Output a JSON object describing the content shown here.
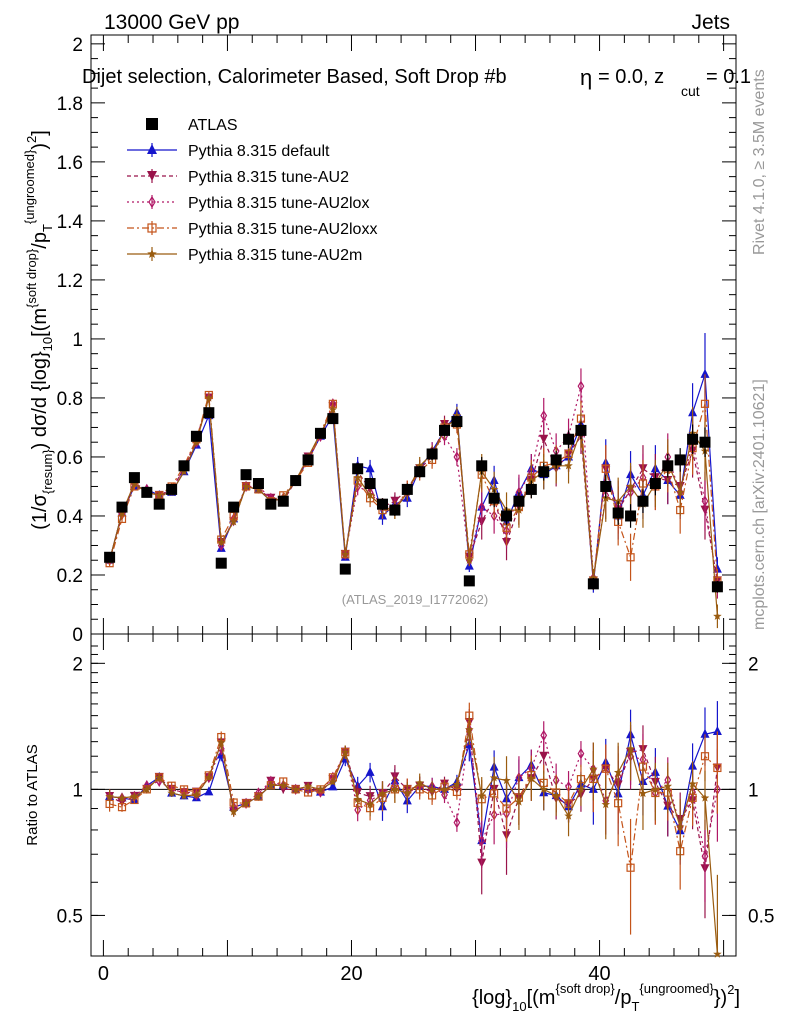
{
  "header": {
    "energy_label": "13000 GeV pp",
    "category_label": "Jets",
    "selection_title": "Dijet selection, Calorimeter Based, Soft Drop #b",
    "selection_beta": "= 0.0, z",
    "selection_zcut_sub": "cut",
    "selection_zcut_val": "= 0.1",
    "beta_glyph": "η",
    "side_rivet": "Rivet 4.1.0, ≥ 3.5M events",
    "side_mcplots": "mcplots.cern.ch [arXiv:2401.10621]",
    "analysis_id": "(ATLAS_2019_I1772062)"
  },
  "colors": {
    "atlas": "#000000",
    "default": "#1515cc",
    "au2": "#99134a",
    "au2lox": "#b01866",
    "au2loxx": "#c4541a",
    "au2m": "#9a5c10"
  },
  "chart_data": [
    {
      "type": "line",
      "panel": "main",
      "ylabel": "(1/σ{resum}) dσ/d {log}10[(m^{soft drop}/p_T^{ungroomed})^2]",
      "ylabel_parts": {
        "a": "(1/σ",
        "a_sub": "{resum}",
        "b": ") dσ/d {log}",
        "b_sub": "10",
        "c": "[(m",
        "c_sup": "{soft drop}",
        "d": "/p",
        "d_sub": "T",
        "d_sup": "{ungroomed}",
        "e": ")",
        "e_sup": "2",
        "f": "]"
      },
      "xlim": [
        -1,
        51
      ],
      "ylim": [
        0,
        2.03
      ],
      "yticks": [
        0,
        0.2,
        0.4,
        0.6,
        0.8,
        1,
        1.2,
        1.4,
        1.6,
        1.8,
        2
      ],
      "ytick_labels": [
        "0",
        "0.2",
        "0.4",
        "0.6",
        "0.8",
        "1",
        "1.2",
        "1.4",
        "1.6",
        "1.8",
        "2"
      ],
      "legend_position": "top-left",
      "x": [
        0.5,
        1.5,
        2.5,
        3.5,
        4.5,
        5.5,
        6.5,
        7.5,
        8.5,
        9.5,
        10.5,
        11.5,
        12.5,
        13.5,
        14.5,
        15.5,
        16.5,
        17.5,
        18.5,
        19.5,
        20.5,
        21.5,
        22.5,
        23.5,
        24.5,
        25.5,
        26.5,
        27.5,
        28.5,
        29.5,
        30.5,
        31.5,
        32.5,
        33.5,
        34.5,
        35.5,
        36.5,
        37.5,
        38.5,
        39.5,
        40.5,
        41.5,
        42.5,
        43.5,
        44.5,
        45.5,
        46.5,
        47.5,
        48.5,
        49.5
      ],
      "series": [
        {
          "name": "ATLAS",
          "key": "atlas",
          "marker": "square",
          "values": [
            0.26,
            0.43,
            0.53,
            0.48,
            0.44,
            0.49,
            0.57,
            0.67,
            0.75,
            0.24,
            0.43,
            0.54,
            0.51,
            0.44,
            0.45,
            0.52,
            0.59,
            0.68,
            0.73,
            0.22,
            0.56,
            0.51,
            0.44,
            0.42,
            0.49,
            0.55,
            0.61,
            0.69,
            0.72,
            0.18,
            0.57,
            0.46,
            0.4,
            0.45,
            0.49,
            0.55,
            0.59,
            0.66,
            0.69,
            0.17,
            0.5,
            0.41,
            0.4,
            0.45,
            0.51,
            0.57,
            0.59,
            0.66,
            0.65,
            0.16
          ],
          "errors": [
            0.01,
            0.01,
            0.01,
            0.01,
            0.01,
            0.01,
            0.01,
            0.01,
            0.01,
            0.01,
            0.01,
            0.01,
            0.01,
            0.01,
            0.01,
            0.01,
            0.01,
            0.01,
            0.01,
            0.01,
            0.02,
            0.02,
            0.02,
            0.02,
            0.02,
            0.02,
            0.02,
            0.02,
            0.02,
            0.01,
            0.03,
            0.03,
            0.03,
            0.03,
            0.03,
            0.03,
            0.03,
            0.03,
            0.03,
            0.02,
            0.04,
            0.04,
            0.04,
            0.04,
            0.04,
            0.04,
            0.04,
            0.05,
            0.05,
            0.02
          ]
        },
        {
          "name": "Pythia 8.315 default",
          "key": "default",
          "marker": "triangle",
          "dash": "",
          "values": [
            0.25,
            0.41,
            0.5,
            0.49,
            0.47,
            0.48,
            0.55,
            0.64,
            0.74,
            0.29,
            0.39,
            0.5,
            0.49,
            0.45,
            0.46,
            0.52,
            0.59,
            0.67,
            0.74,
            0.26,
            0.57,
            0.56,
            0.4,
            0.44,
            0.46,
            0.56,
            0.62,
            0.69,
            0.75,
            0.23,
            0.43,
            0.52,
            0.38,
            0.48,
            0.56,
            0.54,
            0.57,
            0.6,
            0.71,
            0.17,
            0.58,
            0.4,
            0.54,
            0.47,
            0.56,
            0.52,
            0.47,
            0.75,
            0.88,
            0.22
          ],
          "errors": [
            0.01,
            0.01,
            0.01,
            0.01,
            0.01,
            0.01,
            0.01,
            0.01,
            0.01,
            0.01,
            0.01,
            0.01,
            0.01,
            0.01,
            0.01,
            0.01,
            0.01,
            0.01,
            0.01,
            0.01,
            0.03,
            0.03,
            0.03,
            0.03,
            0.03,
            0.03,
            0.03,
            0.03,
            0.03,
            0.02,
            0.05,
            0.05,
            0.05,
            0.05,
            0.05,
            0.05,
            0.05,
            0.05,
            0.05,
            0.03,
            0.08,
            0.08,
            0.08,
            0.08,
            0.08,
            0.08,
            0.08,
            0.1,
            0.14,
            0.04
          ]
        },
        {
          "name": "Pythia 8.315 tune-AU2",
          "key": "au2",
          "marker": "triangle-down",
          "dash": "4,3",
          "values": [
            0.25,
            0.4,
            0.51,
            0.48,
            0.47,
            0.49,
            0.56,
            0.66,
            0.8,
            0.31,
            0.38,
            0.5,
            0.49,
            0.46,
            0.45,
            0.52,
            0.6,
            0.67,
            0.77,
            0.27,
            0.55,
            0.49,
            0.43,
            0.45,
            0.49,
            0.56,
            0.6,
            0.71,
            0.72,
            0.26,
            0.38,
            0.46,
            0.31,
            0.43,
            0.52,
            0.66,
            0.56,
            0.61,
            0.67,
            0.18,
            0.56,
            0.42,
            0.49,
            0.56,
            0.53,
            0.52,
            0.5,
            0.62,
            0.42,
            0.18
          ],
          "errors": [
            0.01,
            0.01,
            0.01,
            0.01,
            0.01,
            0.01,
            0.01,
            0.01,
            0.01,
            0.01,
            0.01,
            0.01,
            0.01,
            0.01,
            0.01,
            0.01,
            0.01,
            0.01,
            0.01,
            0.01,
            0.03,
            0.03,
            0.03,
            0.03,
            0.03,
            0.03,
            0.03,
            0.03,
            0.03,
            0.02,
            0.06,
            0.06,
            0.06,
            0.06,
            0.06,
            0.06,
            0.06,
            0.06,
            0.06,
            0.03,
            0.08,
            0.08,
            0.08,
            0.08,
            0.08,
            0.08,
            0.08,
            0.09,
            0.1,
            0.04
          ]
        },
        {
          "name": "Pythia 8.315 tune-AU2lox",
          "key": "au2lox",
          "marker": "diamond",
          "dash": "2,3",
          "values": [
            0.25,
            0.41,
            0.51,
            0.49,
            0.46,
            0.49,
            0.56,
            0.65,
            0.8,
            0.3,
            0.39,
            0.5,
            0.5,
            0.46,
            0.46,
            0.52,
            0.59,
            0.67,
            0.78,
            0.27,
            0.5,
            0.48,
            0.43,
            0.43,
            0.48,
            0.56,
            0.62,
            0.67,
            0.6,
            0.25,
            0.43,
            0.4,
            0.35,
            0.48,
            0.55,
            0.74,
            0.62,
            0.67,
            0.84,
            0.19,
            0.47,
            0.44,
            0.48,
            0.53,
            0.5,
            0.6,
            0.48,
            0.65,
            0.45,
            0.16
          ],
          "errors": [
            0.01,
            0.01,
            0.01,
            0.01,
            0.01,
            0.01,
            0.01,
            0.01,
            0.01,
            0.01,
            0.01,
            0.01,
            0.01,
            0.01,
            0.01,
            0.01,
            0.01,
            0.01,
            0.01,
            0.01,
            0.03,
            0.03,
            0.03,
            0.03,
            0.03,
            0.03,
            0.03,
            0.03,
            0.03,
            0.02,
            0.06,
            0.06,
            0.06,
            0.06,
            0.06,
            0.06,
            0.06,
            0.06,
            0.06,
            0.03,
            0.08,
            0.08,
            0.08,
            0.08,
            0.08,
            0.08,
            0.08,
            0.09,
            0.1,
            0.04
          ]
        },
        {
          "name": "Pythia 8.315 tune-AU2loxx",
          "key": "au2loxx",
          "marker": "square-open",
          "dash": "7,3,2,3",
          "values": [
            0.24,
            0.39,
            0.5,
            0.48,
            0.47,
            0.5,
            0.57,
            0.66,
            0.81,
            0.32,
            0.4,
            0.5,
            0.49,
            0.45,
            0.47,
            0.52,
            0.58,
            0.68,
            0.78,
            0.27,
            0.52,
            0.46,
            0.42,
            0.42,
            0.49,
            0.55,
            0.59,
            0.7,
            0.71,
            0.27,
            0.54,
            0.45,
            0.36,
            0.43,
            0.53,
            0.57,
            0.58,
            0.61,
            0.73,
            0.18,
            0.56,
            0.38,
            0.26,
            0.51,
            0.5,
            0.56,
            0.42,
            0.63,
            0.78,
            0.18
          ],
          "errors": [
            0.01,
            0.01,
            0.01,
            0.01,
            0.01,
            0.01,
            0.01,
            0.01,
            0.01,
            0.01,
            0.01,
            0.01,
            0.01,
            0.01,
            0.01,
            0.01,
            0.01,
            0.01,
            0.01,
            0.01,
            0.03,
            0.03,
            0.03,
            0.03,
            0.03,
            0.03,
            0.03,
            0.03,
            0.03,
            0.02,
            0.06,
            0.06,
            0.06,
            0.06,
            0.06,
            0.06,
            0.06,
            0.06,
            0.06,
            0.03,
            0.08,
            0.08,
            0.08,
            0.08,
            0.08,
            0.08,
            0.08,
            0.09,
            0.1,
            0.04
          ]
        },
        {
          "name": "Pythia 8.315 tune-AU2m",
          "key": "au2m",
          "marker": "star",
          "dash": "",
          "values": [
            0.25,
            0.41,
            0.51,
            0.48,
            0.47,
            0.48,
            0.55,
            0.65,
            0.8,
            0.31,
            0.38,
            0.5,
            0.49,
            0.45,
            0.46,
            0.52,
            0.6,
            0.68,
            0.76,
            0.27,
            0.53,
            0.47,
            0.43,
            0.42,
            0.48,
            0.57,
            0.61,
            0.69,
            0.74,
            0.25,
            0.55,
            0.49,
            0.42,
            0.42,
            0.52,
            0.55,
            0.57,
            0.57,
            0.69,
            0.19,
            0.46,
            0.45,
            0.5,
            0.44,
            0.51,
            0.58,
            0.48,
            0.68,
            0.62,
            0.06
          ],
          "errors": [
            0.01,
            0.01,
            0.01,
            0.01,
            0.01,
            0.01,
            0.01,
            0.01,
            0.01,
            0.01,
            0.01,
            0.01,
            0.01,
            0.01,
            0.01,
            0.01,
            0.01,
            0.01,
            0.01,
            0.01,
            0.03,
            0.03,
            0.03,
            0.03,
            0.03,
            0.03,
            0.03,
            0.03,
            0.03,
            0.02,
            0.06,
            0.06,
            0.06,
            0.06,
            0.06,
            0.06,
            0.06,
            0.06,
            0.06,
            0.03,
            0.08,
            0.08,
            0.08,
            0.08,
            0.08,
            0.08,
            0.08,
            0.09,
            0.1,
            0.04
          ]
        }
      ]
    },
    {
      "type": "line",
      "panel": "ratio",
      "ylabel": "Ratio to ATLAS",
      "xlabel": "{log}10[(m^{soft drop}/p_T^{ungroomed})^2]",
      "xlabel_parts": {
        "a": "{log}",
        "a_sub": "10",
        "b": "[(m",
        "b_sup": "{soft drop}",
        "c": "/p",
        "c_sub": "T",
        "c_sup": "{ungroomed}",
        "d": "})",
        "d_sup": "2",
        "e": "]"
      },
      "xlim": [
        -1,
        51
      ],
      "ylim": [
        0.4,
        2.35
      ],
      "log_y": true,
      "yticks": [
        0.5,
        1,
        2
      ],
      "ytick_labels": [
        "0.5",
        "1",
        "2"
      ],
      "xticks": [
        0,
        20,
        40
      ],
      "xtick_labels": [
        "0",
        "20",
        "40"
      ],
      "reference_line": 1
    }
  ]
}
